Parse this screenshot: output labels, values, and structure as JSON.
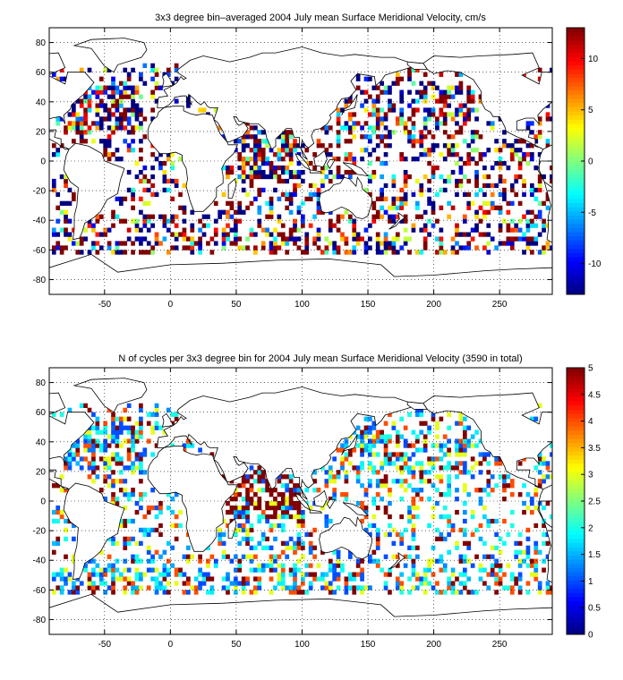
{
  "chart_data": [
    {
      "type": "heatmap",
      "title": "3x3 degree bin–averaged 2004 July mean Surface Meridional Velocity, cm/s",
      "xlabel": "",
      "ylabel": "",
      "xlim": [
        -92,
        290
      ],
      "ylim": [
        -90,
        90
      ],
      "xticks": [
        "-50",
        "0",
        "50",
        "100",
        "150",
        "200",
        "250"
      ],
      "xtick_values": [
        -50,
        0,
        50,
        100,
        150,
        200,
        250
      ],
      "yticks": [
        "80",
        "60",
        "40",
        "20",
        "0",
        "-20",
        "-40",
        "-60",
        "-80"
      ],
      "ytick_values": [
        80,
        60,
        40,
        20,
        0,
        -20,
        -40,
        -60,
        -80
      ],
      "grid": true,
      "colormap": "jet",
      "clim": [
        -13,
        13
      ],
      "colorbar_ticks": [
        "10",
        "5",
        "0",
        "-5",
        "-10"
      ],
      "colorbar_tick_values": [
        10,
        5,
        0,
        -5,
        -10
      ],
      "bin_size_deg": 3,
      "seed": 11
    },
    {
      "type": "heatmap",
      "title": "N of cycles per 3x3 degree bin for 2004 July mean Surface Meridional Velocity (3590 in total)",
      "xlabel": "",
      "ylabel": "",
      "xlim": [
        -92,
        290
      ],
      "ylim": [
        -90,
        90
      ],
      "xticks": [
        "-50",
        "0",
        "50",
        "100",
        "150",
        "200",
        "250"
      ],
      "xtick_values": [
        -50,
        0,
        50,
        100,
        150,
        200,
        250
      ],
      "yticks": [
        "80",
        "60",
        "40",
        "20",
        "0",
        "-20",
        "-40",
        "-60",
        "-80"
      ],
      "ytick_values": [
        80,
        60,
        40,
        20,
        0,
        -20,
        -40,
        -60,
        -80
      ],
      "grid": true,
      "colormap": "jet",
      "clim": [
        0,
        5
      ],
      "colorbar_ticks": [
        "5",
        "4.5",
        "4",
        "3.5",
        "3",
        "2.5",
        "2",
        "1.5",
        "1",
        "0.5",
        "0"
      ],
      "colorbar_tick_values": [
        5,
        4.5,
        4,
        3.5,
        3,
        2.5,
        2,
        1.5,
        1,
        0.5,
        0
      ],
      "bin_size_deg": 3,
      "seed": 29
    }
  ]
}
